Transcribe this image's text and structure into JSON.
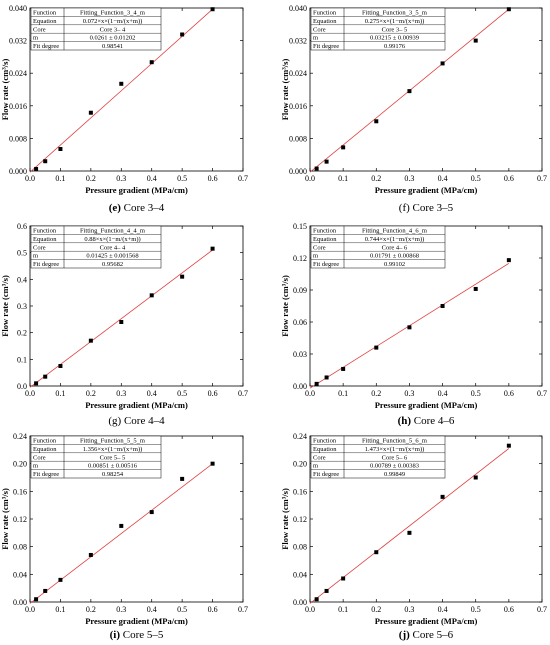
{
  "chart_data": [
    {
      "type": "scatter",
      "panel": "e",
      "caption_letter": "(e)",
      "caption_text": " Core 3–4",
      "letter_bold": true,
      "xlabel": "Pressure gradient (MPa/cm)",
      "ylabel": "Flow rate (cm³/s)",
      "xlim": [
        0,
        0.7
      ],
      "ylim": [
        0,
        0.04
      ],
      "xticks": [
        "0.0",
        "0.1",
        "0.2",
        "0.3",
        "0.4",
        "0.5",
        "0.6",
        "0.7"
      ],
      "yticks": [
        "0.000",
        "0.008",
        "0.016",
        "0.024",
        "0.032",
        "0.040"
      ],
      "series": [
        {
          "type": "scatter",
          "x": [
            0.02,
            0.05,
            0.1,
            0.2,
            0.3,
            0.4,
            0.5,
            0.6
          ],
          "y": [
            0.0005,
            0.0024,
            0.0054,
            0.0143,
            0.0214,
            0.0267,
            0.0335,
            0.0397
          ]
        },
        {
          "type": "line",
          "x": [
            0.0,
            0.6
          ],
          "y": [
            -0.0003,
            0.0397
          ]
        }
      ],
      "fit_table": {
        "rows": [
          [
            "Function",
            "Fitting_Function_3_4_m"
          ],
          [
            "Equation",
            "0.072×x×(1−m/(x+m))"
          ],
          [
            "Core",
            "Core 3– 4"
          ],
          [
            "m",
            "0.0261 ± 0.01202"
          ],
          [
            "Fit degree",
            "0.98541"
          ]
        ]
      },
      "colors": {
        "points": "#000000",
        "fit": "#e04040"
      }
    },
    {
      "type": "scatter",
      "panel": "f",
      "caption_letter": "(f)",
      "caption_text": " Core 3–5",
      "letter_bold": false,
      "xlabel": "Pressure gradient (MPa/cm)",
      "ylabel": "Flow rate (cm³/s)",
      "xlim": [
        0,
        0.7
      ],
      "ylim": [
        0,
        0.04
      ],
      "xticks": [
        "0.0",
        "0.1",
        "0.2",
        "0.3",
        "0.4",
        "0.5",
        "0.6",
        "0.7"
      ],
      "yticks": [
        "0.000",
        "0.008",
        "0.016",
        "0.024",
        "0.032",
        "0.040"
      ],
      "series": [
        {
          "type": "scatter",
          "x": [
            0.02,
            0.05,
            0.1,
            0.2,
            0.3,
            0.4,
            0.5,
            0.6
          ],
          "y": [
            0.0006,
            0.0023,
            0.0058,
            0.0122,
            0.0196,
            0.0264,
            0.032,
            0.0397
          ]
        },
        {
          "type": "line",
          "x": [
            0.0,
            0.6
          ],
          "y": [
            -0.0003,
            0.0397
          ]
        }
      ],
      "fit_table": {
        "rows": [
          [
            "Function",
            "Fitting_Function_3_5_m"
          ],
          [
            "Equation",
            "0.275×x×(1−m/(x+m))"
          ],
          [
            "Core",
            "Core 3– 5"
          ],
          [
            "m",
            "0.03215 ± 0.00939"
          ],
          [
            "Fit degree",
            "0.99176"
          ]
        ]
      },
      "colors": {
        "points": "#000000",
        "fit": "#e04040"
      }
    },
    {
      "type": "scatter",
      "panel": "g",
      "caption_letter": "(g)",
      "caption_text": " Core 4–4",
      "letter_bold": false,
      "xlabel": "Pressure gradient (MPa/cm)",
      "ylabel": "Flow rate (cm³/s)",
      "xlim": [
        0,
        0.7
      ],
      "ylim": [
        0,
        0.6
      ],
      "xticks": [
        "0.0",
        "0.1",
        "0.2",
        "0.3",
        "0.4",
        "0.5",
        "0.6",
        "0.7"
      ],
      "yticks": [
        "0.0",
        "0.1",
        "0.2",
        "0.3",
        "0.4",
        "0.5",
        "0.6"
      ],
      "series": [
        {
          "type": "scatter",
          "x": [
            0.02,
            0.05,
            0.1,
            0.2,
            0.3,
            0.4,
            0.5,
            0.6
          ],
          "y": [
            0.01,
            0.035,
            0.075,
            0.17,
            0.24,
            0.34,
            0.41,
            0.515
          ]
        },
        {
          "type": "line",
          "x": [
            0.0,
            0.6
          ],
          "y": [
            -0.005,
            0.51
          ]
        }
      ],
      "fit_table": {
        "rows": [
          [
            "Function",
            "Fitting_Function_4_4_m"
          ],
          [
            "Equation",
            "0.88×x×(1−m/(x+m))"
          ],
          [
            "Core",
            "Core 4– 4"
          ],
          [
            "m",
            "0.01425 ± 0.001568"
          ],
          [
            "Fit degree",
            "0.95682"
          ]
        ]
      },
      "colors": {
        "points": "#000000",
        "fit": "#e04040"
      }
    },
    {
      "type": "scatter",
      "panel": "h",
      "caption_letter": "(h)",
      "caption_text": " Core 4–6",
      "letter_bold": true,
      "xlabel": "Pressure gradient (MPa/cm)",
      "ylabel": "Flow rate (cm³/s)",
      "xlim": [
        0,
        0.7
      ],
      "ylim": [
        0,
        0.15
      ],
      "xticks": [
        "0.0",
        "0.1",
        "0.2",
        "0.3",
        "0.4",
        "0.5",
        "0.6",
        "0.7"
      ],
      "yticks": [
        "0.00",
        "0.03",
        "0.06",
        "0.09",
        "0.12",
        "0.15"
      ],
      "series": [
        {
          "type": "scatter",
          "x": [
            0.02,
            0.05,
            0.1,
            0.2,
            0.3,
            0.4,
            0.5,
            0.6
          ],
          "y": [
            0.002,
            0.008,
            0.016,
            0.036,
            0.055,
            0.075,
            0.091,
            0.118
          ]
        },
        {
          "type": "line",
          "x": [
            0.0,
            0.6
          ],
          "y": [
            -0.002,
            0.115
          ]
        }
      ],
      "fit_table": {
        "rows": [
          [
            "Function",
            "Fitting_Function_4_6_m"
          ],
          [
            "Equation",
            "0.744×x×(1−m/(x+m))"
          ],
          [
            "Core",
            "Core 4– 6"
          ],
          [
            "m",
            "0.01791 ± 0.00868"
          ],
          [
            "Fit degree",
            "0.99102"
          ]
        ]
      },
      "colors": {
        "points": "#000000",
        "fit": "#e04040"
      }
    },
    {
      "type": "scatter",
      "panel": "i",
      "caption_letter": "(i)",
      "caption_text": " Core 5–5",
      "letter_bold": true,
      "xlabel": "Pressure gradient (MPa/cm)",
      "ylabel": "Flow rate (cm³/s)",
      "xlim": [
        0,
        0.7
      ],
      "ylim": [
        0,
        0.24
      ],
      "xticks": [
        "0.0",
        "0.1",
        "0.2",
        "0.3",
        "0.4",
        "0.5",
        "0.6",
        "0.7"
      ],
      "yticks": [
        "0.00",
        "0.04",
        "0.08",
        "0.12",
        "0.16",
        "0.20",
        "0.24"
      ],
      "series": [
        {
          "type": "scatter",
          "x": [
            0.02,
            0.05,
            0.1,
            0.2,
            0.3,
            0.4,
            0.5,
            0.6
          ],
          "y": [
            0.004,
            0.016,
            0.032,
            0.068,
            0.11,
            0.13,
            0.178,
            0.2
          ]
        },
        {
          "type": "line",
          "x": [
            0.0,
            0.6
          ],
          "y": [
            -0.002,
            0.2
          ]
        }
      ],
      "fit_table": {
        "rows": [
          [
            "Function",
            "Fitting_Function_5_5_m"
          ],
          [
            "Equation",
            "1.356×x×(1−m/(x+m))"
          ],
          [
            "Core",
            "Core 5– 5"
          ],
          [
            "m",
            "0.00851 ± 0.00516"
          ],
          [
            "Fit degree",
            "0.98254"
          ]
        ]
      },
      "colors": {
        "points": "#000000",
        "fit": "#e04040"
      }
    },
    {
      "type": "scatter",
      "panel": "j",
      "caption_letter": "(j)",
      "caption_text": " Core 5–6",
      "letter_bold": true,
      "xlabel": "Pressure gradient (MPa/cm)",
      "ylabel": "Flow rate (cm³/s)",
      "xlim": [
        0,
        0.7
      ],
      "ylim": [
        0,
        0.24
      ],
      "xticks": [
        "0.0",
        "0.1",
        "0.2",
        "0.3",
        "0.4",
        "0.5",
        "0.6",
        "0.7"
      ],
      "yticks": [
        "0.00",
        "0.04",
        "0.08",
        "0.12",
        "0.16",
        "0.20",
        "0.24"
      ],
      "series": [
        {
          "type": "scatter",
          "x": [
            0.02,
            0.05,
            0.1,
            0.2,
            0.3,
            0.4,
            0.5,
            0.6
          ],
          "y": [
            0.004,
            0.016,
            0.034,
            0.072,
            0.1,
            0.152,
            0.18,
            0.226
          ]
        },
        {
          "type": "line",
          "x": [
            0.0,
            0.6
          ],
          "y": [
            -0.002,
            0.222
          ]
        }
      ],
      "fit_table": {
        "rows": [
          [
            "Function",
            "Fitting_Function_5_6_m"
          ],
          [
            "Equation",
            "1.473×x×(1−m/(x+m))"
          ],
          [
            "Core",
            "Core 5– 6"
          ],
          [
            "m",
            "0.00789 ± 0.00383"
          ],
          [
            "Fit degree",
            "0.99849"
          ]
        ]
      },
      "colors": {
        "points": "#000000",
        "fit": "#e04040"
      }
    }
  ]
}
